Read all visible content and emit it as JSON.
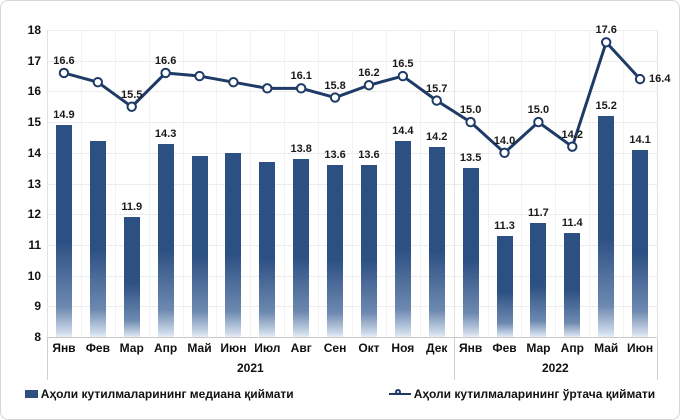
{
  "chart_data": {
    "type": "bar",
    "title": "",
    "ylabel": "",
    "xlabel": "",
    "ylim": [
      8,
      18
    ],
    "yticks": [
      18,
      17,
      16,
      15,
      14,
      13,
      12,
      11,
      10,
      9,
      8
    ],
    "grid": "on",
    "legend_position": "bottom",
    "categories": [
      "Янв",
      "Фев",
      "Мар",
      "Апр",
      "Май",
      "Июн",
      "Июл",
      "Авг",
      "Сен",
      "Окт",
      "Ноя",
      "Дек",
      "Янв",
      "Фев",
      "Мар",
      "Апр",
      "Май",
      "Июн"
    ],
    "year_groups": [
      {
        "label": "2021",
        "months": 12
      },
      {
        "label": "2022",
        "months": 6
      }
    ],
    "series": [
      {
        "name": "Аҳоли кутилмаларининг медиана қиймати",
        "type": "bar",
        "color": "#2d5083",
        "values": [
          14.9,
          14.4,
          11.9,
          14.3,
          13.9,
          14.0,
          13.7,
          13.8,
          13.6,
          13.6,
          14.4,
          14.2,
          13.5,
          11.3,
          11.7,
          11.4,
          15.2,
          14.1
        ],
        "point_labels": [
          "14.9",
          "",
          "11.9",
          "14.3",
          "",
          "",
          "",
          "13.8",
          "13.6",
          "13.6",
          "14.4",
          "14.2",
          "13.5",
          "11.3",
          "11.7",
          "11.4",
          "15.2",
          "14.1"
        ]
      },
      {
        "name": "Аҳоли кутилмаларининг ўртача қиймати",
        "type": "line",
        "color": "#1e3a66",
        "marker": "circle-open",
        "values": [
          16.6,
          16.3,
          15.5,
          16.6,
          16.5,
          16.3,
          16.1,
          16.1,
          15.8,
          16.2,
          16.5,
          15.7,
          15.0,
          14.0,
          15.0,
          14.2,
          17.6,
          16.4
        ],
        "point_labels": [
          "16.6",
          "",
          "15.5",
          "16.6",
          "",
          "",
          "",
          "16.1",
          "15.8",
          "16.2",
          "16.5",
          "15.7",
          "15.0",
          "14.0",
          "15.0",
          "14.2",
          "17.6",
          "16.4"
        ]
      }
    ]
  }
}
